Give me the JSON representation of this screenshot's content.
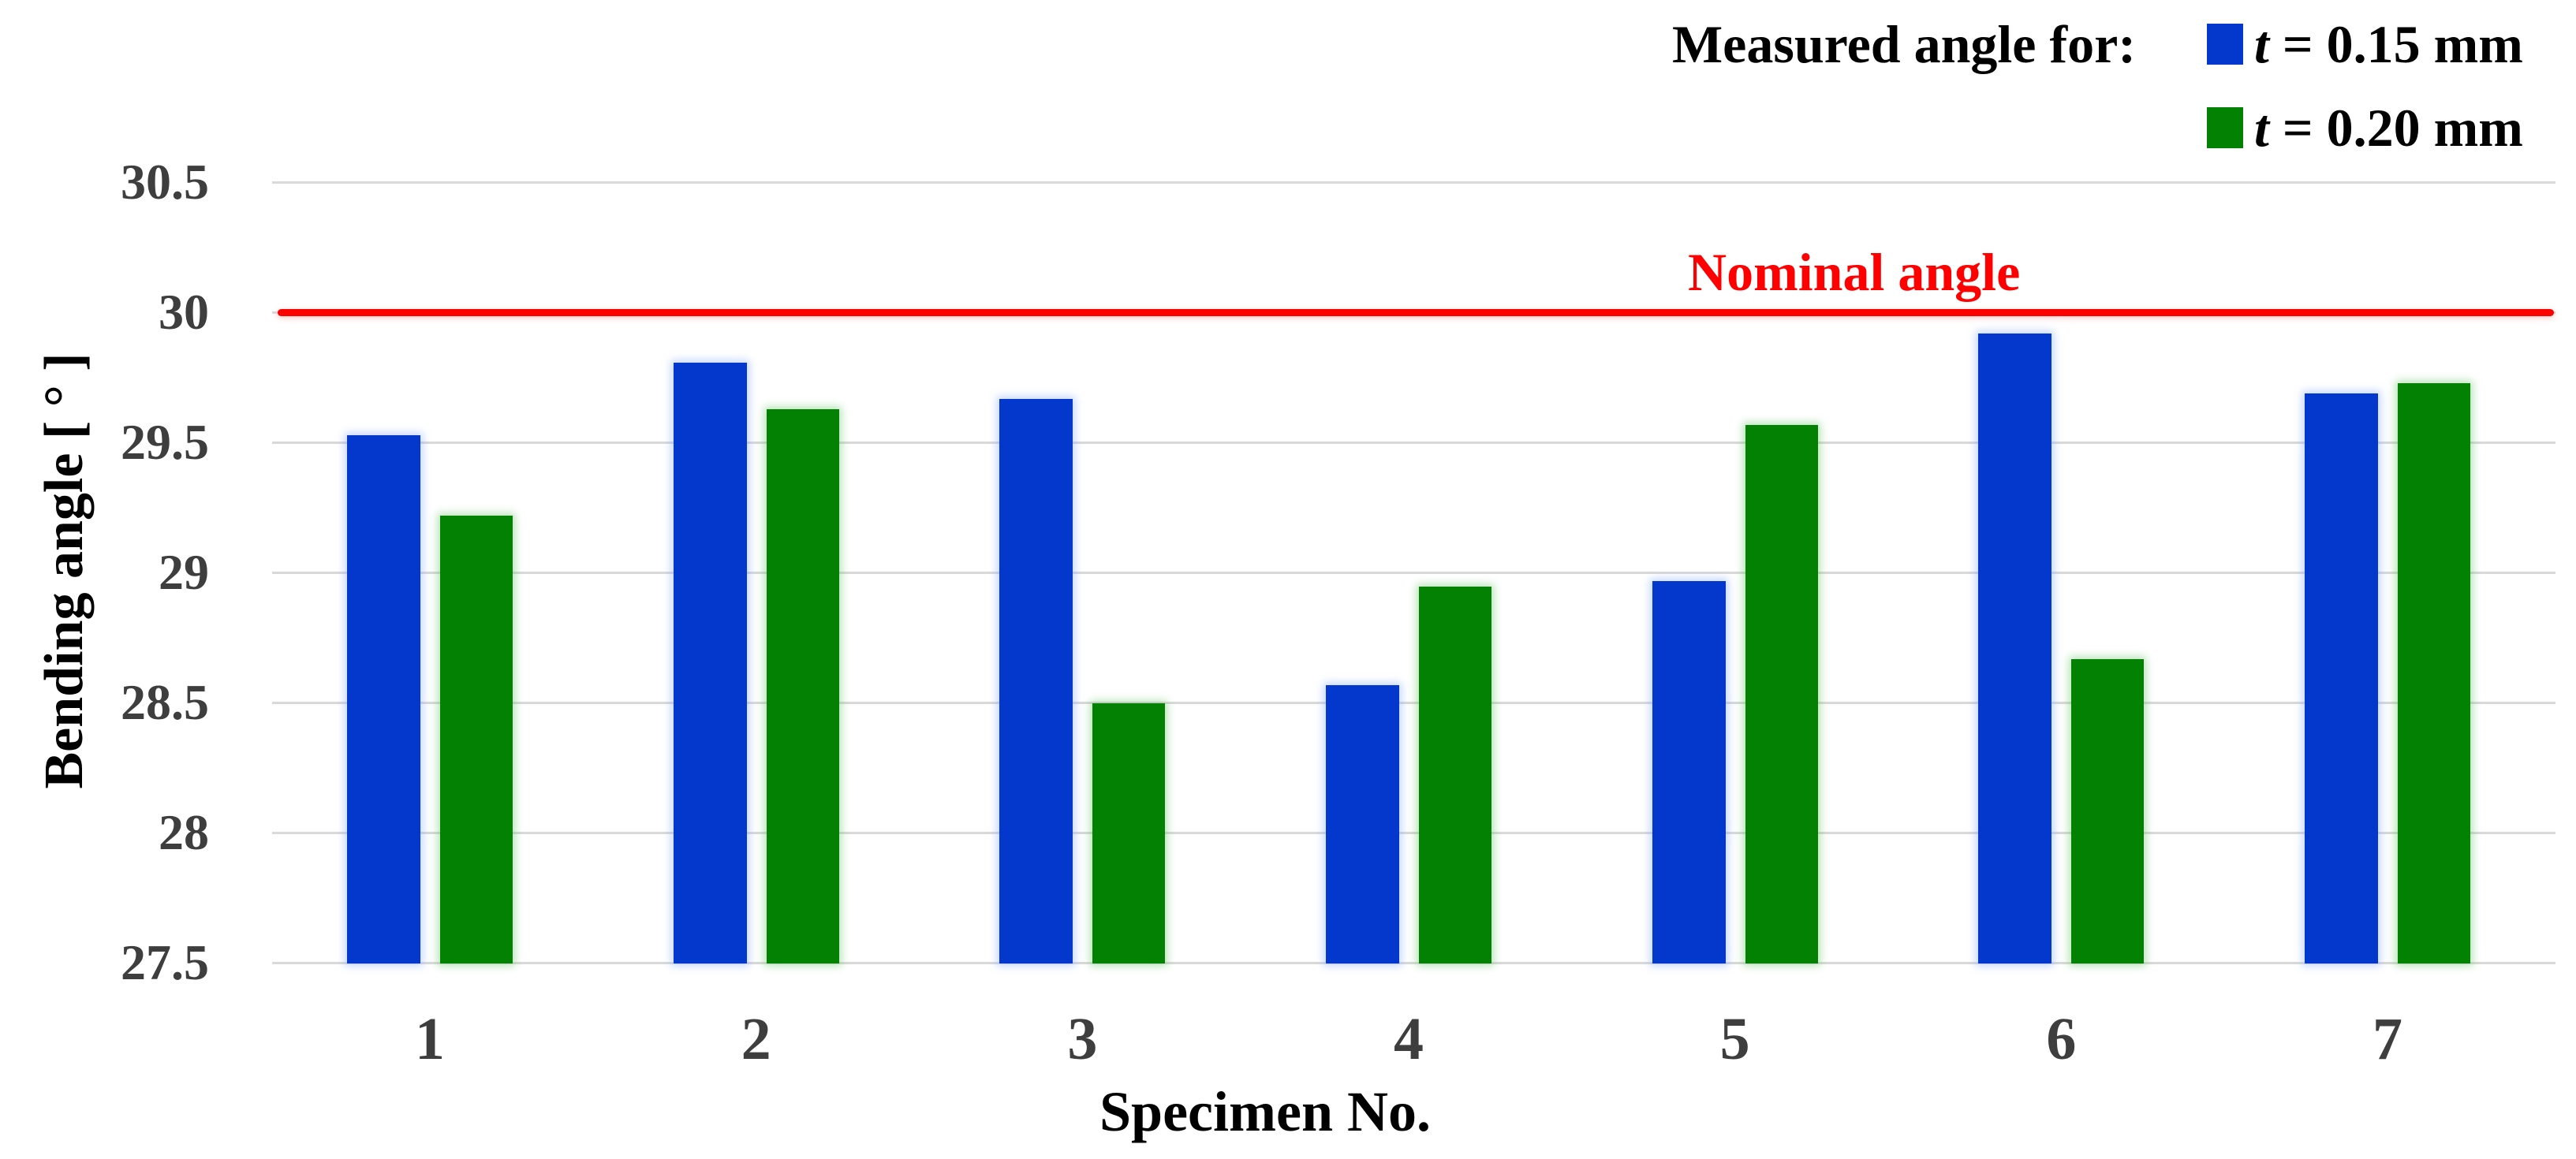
{
  "legend": {
    "title": "Measured angle for:",
    "entries": [
      {
        "symbol": "t",
        "rest": " = 0.15 mm",
        "color": "#0437cc"
      },
      {
        "symbol": "t",
        "rest": " = 0.20 mm",
        "color": "#028102"
      }
    ]
  },
  "axes": {
    "y_label": "Bending angle [ ° ]",
    "x_label": "Specimen No.",
    "y_ticks": [
      "30.5",
      "30",
      "29.5",
      "29",
      "28.5",
      "28",
      "27.5"
    ],
    "x_ticks": [
      "1",
      "2",
      "3",
      "4",
      "5",
      "6",
      "7"
    ]
  },
  "nominal": {
    "label": "Nominal angle",
    "value": 30,
    "color": "#ff0000"
  },
  "chart_data": {
    "type": "bar",
    "title": "",
    "categories": [
      1,
      2,
      3,
      4,
      5,
      6,
      7
    ],
    "series": [
      {
        "name": "t = 0.15 mm",
        "color": "#0437cc",
        "values": [
          29.53,
          29.81,
          29.67,
          28.57,
          28.97,
          29.92,
          29.69
        ]
      },
      {
        "name": "t = 0.20 mm",
        "color": "#028102",
        "values": [
          29.22,
          29.63,
          28.5,
          28.95,
          29.57,
          28.67,
          29.73
        ]
      }
    ],
    "xlabel": "Specimen No.",
    "ylabel": "Bending angle [ ° ]",
    "ylim": [
      27.5,
      30.5
    ],
    "ytick_step": 0.5,
    "grid": true,
    "legend_position": "top-right",
    "reference_line": {
      "value": 30,
      "label": "Nominal angle",
      "color": "#ff0000"
    }
  }
}
